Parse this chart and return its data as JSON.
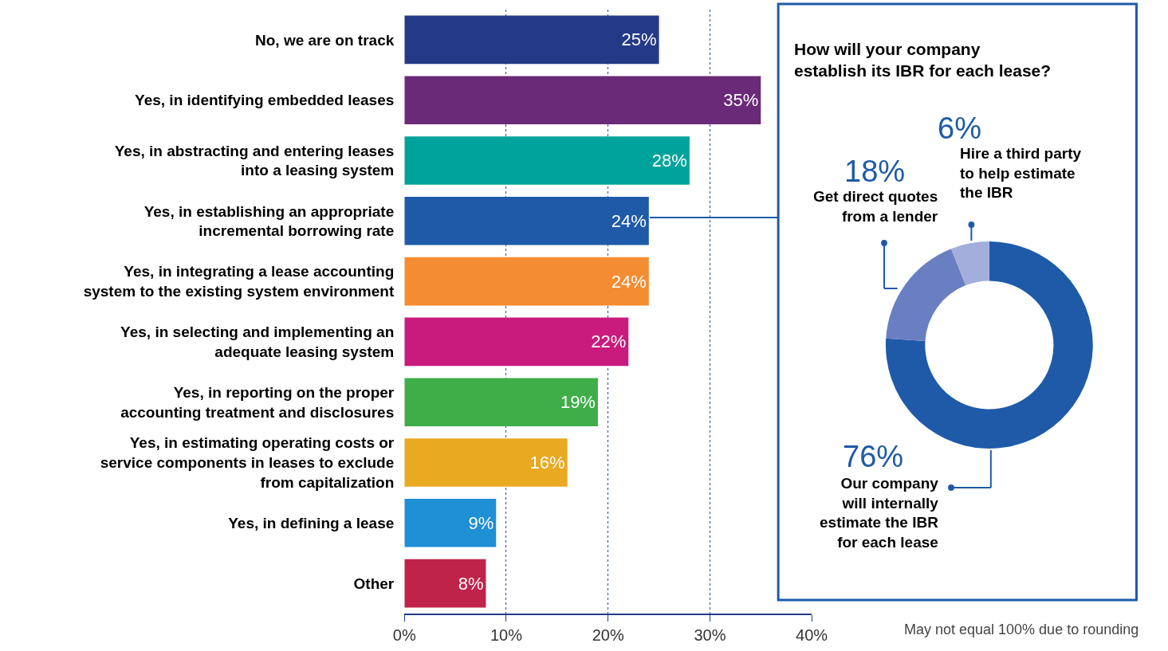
{
  "chart_data": [
    {
      "type": "bar",
      "orientation": "horizontal",
      "categories": [
        "No, we are on track",
        "Yes, in identifying embedded leases",
        "Yes, in abstracting and entering leases\ninto a leasing system",
        "Yes, in establishing an appropriate\nincremental borrowing rate",
        "Yes, in integrating a lease accounting\nsystem to the existing system environment",
        "Yes, in selecting and implementing an\nadequate leasing system",
        "Yes, in reporting on the proper\naccounting treatment and disclosures",
        "Yes, in estimating operating costs or\nservice components in leases to exclude\nfrom capitalization",
        "Yes, in defining a lease",
        "Other"
      ],
      "values": [
        25,
        35,
        28,
        24,
        24,
        22,
        19,
        16,
        9,
        8
      ],
      "value_labels": [
        "25%",
        "35%",
        "28%",
        "24%",
        "24%",
        "22%",
        "19%",
        "16%",
        "9%",
        "8%"
      ],
      "colors": [
        "#253a87",
        "#6b2a78",
        "#00a39b",
        "#1e5aa8",
        "#f48c31",
        "#c81b7d",
        "#3fae49",
        "#e9a920",
        "#1f8fd6",
        "#c0234a"
      ],
      "xlim": [
        0,
        40
      ],
      "xticks": [
        {
          "value": 0,
          "label": "0%"
        },
        {
          "value": 10,
          "label": "10%"
        },
        {
          "value": 20,
          "label": "20%"
        },
        {
          "value": 30,
          "label": "30%"
        },
        {
          "value": 40,
          "label": "40%"
        }
      ],
      "grid": "x",
      "annotations": [
        "May not equal 100% due to rounding"
      ]
    },
    {
      "type": "donut",
      "title": "How will your company\nestablish its IBR for each lease?",
      "categories": [
        "Our company\nwill internally\nestimate the IBR\nfor each lease",
        "Get direct quotes\nfrom a lender",
        "Hire a third party\nto help estimate\nthe IBR"
      ],
      "values": [
        76,
        18,
        6
      ],
      "value_labels": [
        "76%",
        "18%",
        "6%"
      ],
      "colors": [
        "#1e5aa8",
        "#6a7fc1",
        "#a3aedc"
      ]
    }
  ]
}
